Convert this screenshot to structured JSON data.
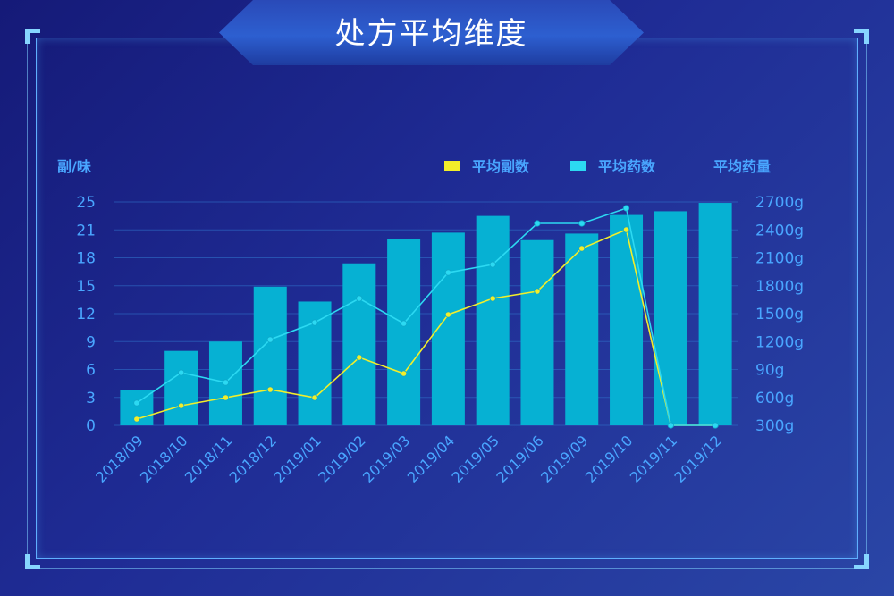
{
  "title": "处方平均维度",
  "colors": {
    "bar": "#06b1d3",
    "line_avg_doses": "#f2ee2a",
    "line_avg_herbs": "#2cd9f2",
    "text": "#49a6ff"
  },
  "chart_data": {
    "type": "bar",
    "categories": [
      "2018/09",
      "2018/10",
      "2018/11",
      "2018/12",
      "2019/01",
      "2019/02",
      "2019/03",
      "2019/04",
      "2019/05",
      "2019/06",
      "2019/09",
      "2019/10",
      "2019/11",
      "2019/12"
    ],
    "series": [
      {
        "name": "平均药量",
        "type": "bar",
        "axis": "right",
        "values": [
          680,
          1100,
          1200,
          1790,
          1630,
          2040,
          2300,
          2370,
          2550,
          2290,
          2360,
          2560,
          2600,
          2690
        ]
      },
      {
        "name": "平均副数",
        "type": "line",
        "axis": "left",
        "values": [
          0.7,
          2.2,
          3.1,
          4.0,
          3.1,
          7.6,
          5.8,
          12.4,
          14.2,
          15.0,
          19.8,
          21.9,
          0.0,
          0.0
        ]
      },
      {
        "name": "平均药数",
        "type": "line",
        "axis": "left",
        "values": [
          2.5,
          5.9,
          4.8,
          9.6,
          11.5,
          14.2,
          11.4,
          17.1,
          18.0,
          22.6,
          22.6,
          24.3,
          0.0,
          0.0
        ]
      }
    ],
    "left_axis": {
      "label": "副/味",
      "ticks": [
        "25",
        "21",
        "18",
        "15",
        "12",
        "9",
        "6",
        "3",
        "0"
      ],
      "ylim": [
        0,
        25
      ]
    },
    "right_axis": {
      "label": "平均药量",
      "ticks": [
        "2700g",
        "2400g",
        "2100g",
        "1800g",
        "1500g",
        "1200g",
        "90g",
        "600g",
        "300g"
      ],
      "ylim": [
        300,
        2700
      ]
    },
    "legend": [
      {
        "name": "平均副数",
        "color": "#f2ee2a"
      },
      {
        "name": "平均药数",
        "color": "#2cd9f2"
      }
    ],
    "legend_position": "top-right",
    "grid": true
  }
}
